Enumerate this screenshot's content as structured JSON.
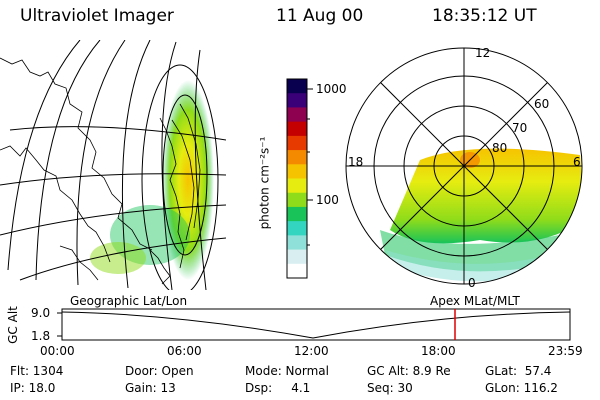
{
  "header": {
    "instrument": "Ultraviolet Imager",
    "date": "11 Aug 00",
    "time": "18:35:12 UT"
  },
  "colorbar": {
    "unit_label": "photon cm⁻²s⁻¹",
    "ticks": [
      "1000",
      "100"
    ],
    "colors": [
      "#ffffff",
      "#d8eef0",
      "#8ee0d8",
      "#33d4c0",
      "#19c35a",
      "#8fdc1a",
      "#e6ec10",
      "#f6c300",
      "#f48a00",
      "#e63a00",
      "#c40000",
      "#8e0050",
      "#3a0078",
      "#0a0050"
    ]
  },
  "polar_plot": {
    "mlt_labels": [
      "12",
      "18",
      "6",
      "0"
    ],
    "lat_labels": [
      "60",
      "70",
      "80"
    ]
  },
  "timeline": {
    "left_label": "Geographic Lat/Lon",
    "right_label": "Apex MLat/MLT",
    "axis_title": "GC Alt",
    "y_ticks": [
      "9.0",
      "1.8"
    ],
    "x_ticks": [
      "00:00",
      "06:00",
      "12:00",
      "18:00",
      "23:59"
    ],
    "marker_color": "#e00000"
  },
  "info": {
    "flt": "Flt: 1304",
    "ip": "IP: 18.0",
    "door": "Door: Open",
    "gain": "Gain: 13",
    "mode": "Mode: Normal",
    "dsp": "Dsp:     4.1",
    "gcalt": "GC Alt: 8.9 Re",
    "seq": "Seq: 30",
    "glat": "GLat:  57.4",
    "glon": "GLon: 116.2"
  }
}
